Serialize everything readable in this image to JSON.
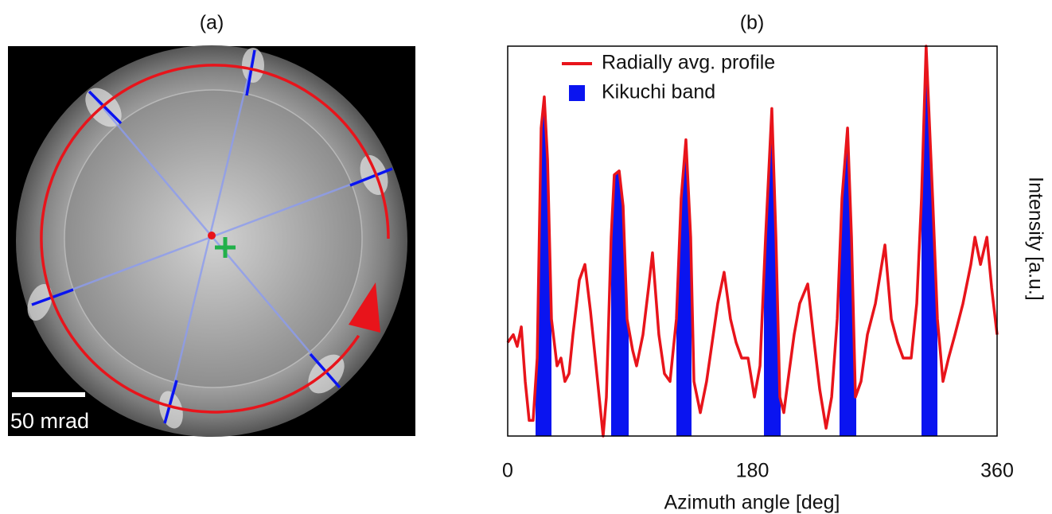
{
  "image_panel": {
    "label": "(a)",
    "scale_bar": "50 mrad"
  },
  "chart_data": {
    "type": "line",
    "title": "(b)",
    "xlabel": "Azimuth angle [deg]",
    "ylabel": "Intensity [a.u.]",
    "xlim": [
      0,
      360
    ],
    "xticks": [
      0,
      180,
      360
    ],
    "ylim": [
      0,
      1
    ],
    "legend": "upper left",
    "x": [
      0,
      4.1,
      7.0,
      10.0,
      12.9,
      15.8,
      18.7,
      21.7,
      24.6,
      26.9,
      29.3,
      32.2,
      36.3,
      39.2,
      42.1,
      45.1,
      48.0,
      52.7,
      56.8,
      60.9,
      64.4,
      67.3,
      70.2,
      72.6,
      76.1,
      78.4,
      82.0,
      84.9,
      87.8,
      91.9,
      94.8,
      99.5,
      103.6,
      106.5,
      111.2,
      115.3,
      119.4,
      124.1,
      127.6,
      131.1,
      134.6,
      137.0,
      141.7,
      146.3,
      150.4,
      154.5,
      159.2,
      163.9,
      168.0,
      172.1,
      176.8,
      181.5,
      185.6,
      189.7,
      194.3,
      197.3,
      200.2,
      203.1,
      206.1,
      210.7,
      214.8,
      220.7,
      224.8,
      229.5,
      234.2,
      238.3,
      242.4,
      245.9,
      250.0,
      252.9,
      255.8,
      259.9,
      264.6,
      270.5,
      277.5,
      282.2,
      286.8,
      290.9,
      296.8,
      300.9,
      304.4,
      307.8,
      312.6,
      316.1,
      320.2,
      324.3,
      329.0,
      334.9,
      340.7,
      343.7,
      347.8,
      352.5,
      356.0,
      360
    ],
    "series": [
      {
        "name": "Radially avg. profile",
        "color": "#e8141b",
        "values": [
          0.24,
          0.26,
          0.23,
          0.28,
          0.14,
          0.04,
          0.04,
          0.2,
          0.79,
          0.87,
          0.71,
          0.3,
          0.18,
          0.2,
          0.14,
          0.16,
          0.26,
          0.4,
          0.44,
          0.32,
          0.2,
          0.1,
          0.0,
          0.1,
          0.51,
          0.67,
          0.68,
          0.59,
          0.3,
          0.22,
          0.18,
          0.26,
          0.38,
          0.47,
          0.26,
          0.16,
          0.14,
          0.3,
          0.61,
          0.76,
          0.51,
          0.14,
          0.06,
          0.14,
          0.24,
          0.34,
          0.42,
          0.3,
          0.24,
          0.2,
          0.2,
          0.1,
          0.18,
          0.51,
          0.84,
          0.51,
          0.1,
          0.06,
          0.14,
          0.26,
          0.34,
          0.39,
          0.26,
          0.12,
          0.02,
          0.1,
          0.3,
          0.61,
          0.79,
          0.51,
          0.1,
          0.14,
          0.26,
          0.34,
          0.49,
          0.3,
          0.24,
          0.2,
          0.2,
          0.34,
          0.61,
          1.0,
          0.61,
          0.3,
          0.14,
          0.2,
          0.26,
          0.34,
          0.44,
          0.51,
          0.44,
          0.51,
          0.38,
          0.26
        ]
      }
    ],
    "bands": {
      "name": "Kikuchi band",
      "color": "#0a14f0",
      "ranges": [
        [
          20.5,
          32.2
        ],
        [
          76.1,
          89.0
        ],
        [
          124.1,
          135.2
        ],
        [
          188.5,
          200.8
        ],
        [
          244.1,
          256.4
        ],
        [
          304.4,
          316.1
        ]
      ]
    }
  }
}
